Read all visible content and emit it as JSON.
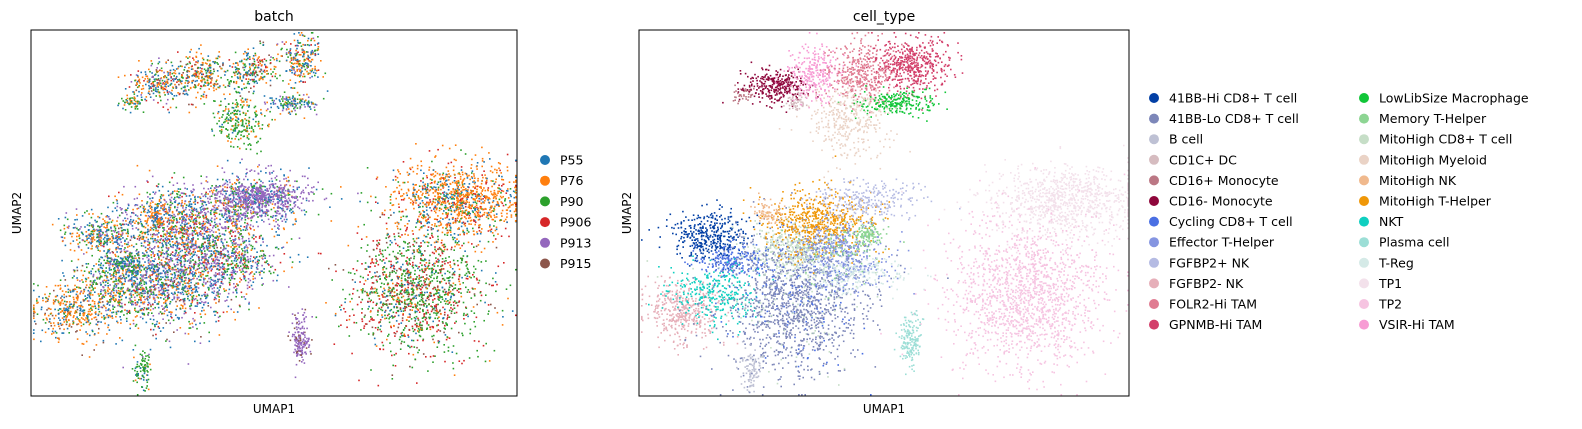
{
  "chart_data": [
    {
      "type": "scatter",
      "title": "batch",
      "xlabel": "UMAP1",
      "ylabel": "UMAP2",
      "grid": false,
      "ticks": false,
      "legend_position": "right",
      "legend": [
        {
          "name": "P55",
          "color": "#1f77b4"
        },
        {
          "name": "P76",
          "color": "#ff7f0e"
        },
        {
          "name": "P90",
          "color": "#2ca02c"
        },
        {
          "name": "P906",
          "color": "#d62728"
        },
        {
          "name": "P913",
          "color": "#9467bd"
        },
        {
          "name": "P915",
          "color": "#8c564b"
        }
      ]
    },
    {
      "type": "scatter",
      "title": "cell_type",
      "xlabel": "UMAP1",
      "ylabel": "UMAP2",
      "grid": false,
      "ticks": false,
      "legend_position": "right",
      "legend_columns": 2,
      "legend": [
        {
          "name": "41BB-Hi CD8+ T cell",
          "color": "#023fa5"
        },
        {
          "name": "41BB-Lo CD8+ T cell",
          "color": "#7d87b9"
        },
        {
          "name": "B cell",
          "color": "#bec1d4"
        },
        {
          "name": "CD1C+ DC",
          "color": "#d6bcc0"
        },
        {
          "name": "CD16+ Monocyte",
          "color": "#bb7784"
        },
        {
          "name": "CD16- Monocyte",
          "color": "#8e063b"
        },
        {
          "name": "Cycling CD8+ T cell",
          "color": "#4a6fe3"
        },
        {
          "name": "Effector T-Helper",
          "color": "#8595e1"
        },
        {
          "name": "FGFBP2+ NK",
          "color": "#b5bbe3"
        },
        {
          "name": "FGFBP2- NK",
          "color": "#e6afb9"
        },
        {
          "name": "FOLR2-Hi TAM",
          "color": "#e07b91"
        },
        {
          "name": "GPNMB-Hi TAM",
          "color": "#d33f6a"
        },
        {
          "name": "LowLibSize Macrophage",
          "color": "#11c638"
        },
        {
          "name": "Memory T-Helper",
          "color": "#8dd593"
        },
        {
          "name": "MitoHigh CD8+ T cell",
          "color": "#c6dec7"
        },
        {
          "name": "MitoHigh Myeloid",
          "color": "#ead3c6"
        },
        {
          "name": "MitoHigh NK",
          "color": "#f0b98d"
        },
        {
          "name": "MitoHigh T-Helper",
          "color": "#ef9708"
        },
        {
          "name": "NKT",
          "color": "#0fcfc0"
        },
        {
          "name": "Plasma cell",
          "color": "#9cded6"
        },
        {
          "name": "T-Reg",
          "color": "#d5eae7"
        },
        {
          "name": "TP1",
          "color": "#f3e1eb"
        },
        {
          "name": "TP2",
          "color": "#f6c4e1"
        },
        {
          "name": "VSIR-Hi TAM",
          "color": "#f79cd4"
        }
      ]
    }
  ]
}
